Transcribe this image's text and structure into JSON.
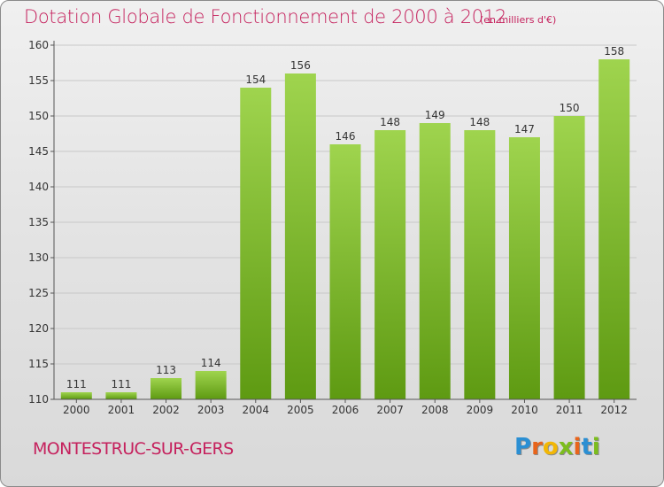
{
  "title": "Dotation Globale de Fonctionnement de 2000 à 2012",
  "subtitle": "(en milliers d'€)",
  "commune": "MONTESTRUC-SUR-GERS",
  "logo": {
    "letters": [
      "P",
      "r",
      "o",
      "x",
      "i",
      "t",
      "i"
    ],
    "colors": [
      "#2b8fd3",
      "#e8641b",
      "#f2b705",
      "#7cbd1e",
      "#e8641b",
      "#2b8fd3",
      "#7cbd1e"
    ]
  },
  "colors": {
    "title": "#c5215d",
    "bar_top": "#9fd44e",
    "bar_bottom": "#5e9a12",
    "gridline": "#c8c8c8"
  },
  "chart_data": {
    "type": "bar",
    "categories": [
      "2000",
      "2001",
      "2002",
      "2003",
      "2004",
      "2005",
      "2006",
      "2007",
      "2008",
      "2009",
      "2010",
      "2011",
      "2012"
    ],
    "values": [
      111,
      111,
      113,
      114,
      154,
      156,
      146,
      148,
      149,
      148,
      147,
      150,
      158
    ],
    "ylim": [
      110,
      160
    ],
    "yticks": [
      110,
      115,
      120,
      125,
      130,
      135,
      140,
      145,
      150,
      155,
      160
    ],
    "grid": true
  }
}
